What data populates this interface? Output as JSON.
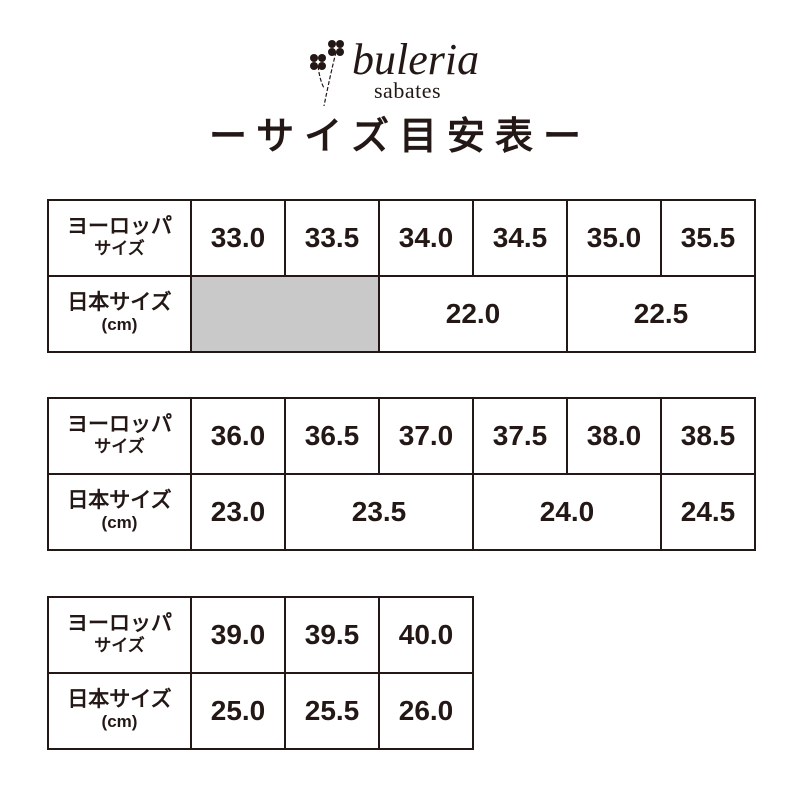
{
  "logo": {
    "brand": "buleria",
    "sub": "sabates",
    "icon": "clover-icon"
  },
  "title": "ーサイズ目安表ー",
  "labels": {
    "eu_main": "ヨーロッパ",
    "eu_sub": "サイズ",
    "jp_main": "日本サイズ",
    "jp_sub": "(cm)"
  },
  "tables": [
    {
      "eu": [
        "33.0",
        "33.5",
        "34.0",
        "34.5",
        "35.0",
        "35.5"
      ],
      "jp": [
        "",
        "22.0",
        "22.5"
      ]
    },
    {
      "eu": [
        "36.0",
        "36.5",
        "37.0",
        "37.5",
        "38.0",
        "38.5"
      ],
      "jp": [
        "23.0",
        "23.5",
        "24.0",
        "24.5"
      ]
    },
    {
      "eu": [
        "39.0",
        "39.5",
        "40.0"
      ],
      "jp": [
        "25.0",
        "25.5",
        "26.0"
      ]
    }
  ],
  "colors": {
    "border": "#231815",
    "unavailable": "#c9c9c9"
  }
}
